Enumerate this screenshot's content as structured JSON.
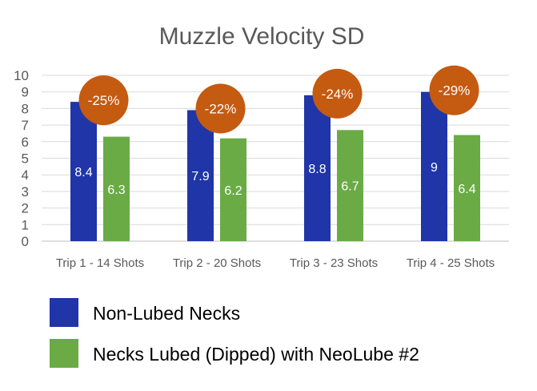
{
  "chart_data": {
    "type": "bar",
    "title": "Muzzle Velocity SD",
    "categories": [
      "Trip 1 - 14 Shots",
      "Trip 2 - 20 Shots",
      "Trip 3 - 23 Shots",
      "Trip 4 - 25 Shots"
    ],
    "series": [
      {
        "name": "Non-Lubed Necks",
        "color": "#1f35a8",
        "values": [
          8.4,
          7.9,
          8.8,
          9
        ]
      },
      {
        "name": "Necks Lubed (Dipped) with NeoLube #2",
        "color": "#6aab46",
        "values": [
          6.3,
          6.2,
          6.7,
          6.4
        ]
      }
    ],
    "annotations": [
      "-25%",
      "-22%",
      "-24%",
      "-29%"
    ],
    "annotation_color": "#c55a11",
    "ylim": [
      0,
      10
    ],
    "yticks": [
      0,
      1,
      2,
      3,
      4,
      5,
      6,
      7,
      8,
      9,
      10
    ],
    "grid": true,
    "legend": "bottom"
  }
}
